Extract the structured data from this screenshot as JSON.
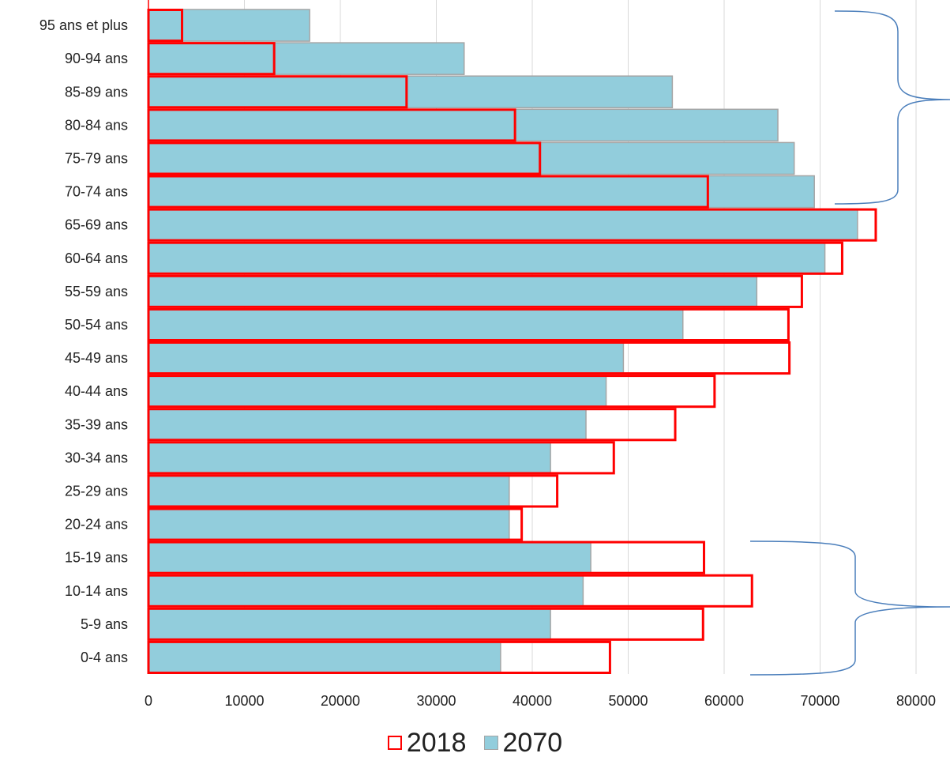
{
  "chart_data": {
    "type": "bar",
    "orientation": "horizontal",
    "categories": [
      "0-4 ans",
      "5-9 ans",
      "10-14 ans",
      "15-19 ans",
      "20-24 ans",
      "25-29 ans",
      "30-34 ans",
      "35-39 ans",
      "40-44 ans",
      "45-49 ans",
      "50-54 ans",
      "55-59 ans",
      "60-64 ans",
      "65-69 ans",
      "70-74 ans",
      "75-79 ans",
      "80-84 ans",
      "85-89 ans",
      "90-94 ans",
      "95 ans et plus"
    ],
    "series": [
      {
        "name": "2018",
        "style": "outline",
        "color": "#ff0000",
        "values": [
          48100,
          57800,
          62900,
          57900,
          38900,
          42600,
          48500,
          54900,
          59000,
          66800,
          66700,
          68100,
          72300,
          75800,
          58300,
          40800,
          38200,
          26900,
          13100,
          3500
        ]
      },
      {
        "name": "2070",
        "style": "filled",
        "color": "#92cddc",
        "border": "#a5a5a5",
        "values": [
          36700,
          41900,
          45300,
          46100,
          37600,
          37600,
          41900,
          45600,
          47700,
          49500,
          55700,
          63400,
          70500,
          73900,
          69400,
          67300,
          65600,
          54600,
          32900,
          16800
        ]
      }
    ],
    "xlim": [
      0,
      80000
    ],
    "xticks": [
      "0",
      "10000",
      "20000",
      "30000",
      "40000",
      "50000",
      "60000",
      "70000",
      "80000"
    ],
    "grid": "vertical",
    "legend_position": "bottom",
    "annotations": [
      "brace spanning 70-74 ans to 95 ans et plus",
      "brace spanning 0-4 ans to 15-19 ans"
    ],
    "brace_color": "#4a7ebb"
  }
}
